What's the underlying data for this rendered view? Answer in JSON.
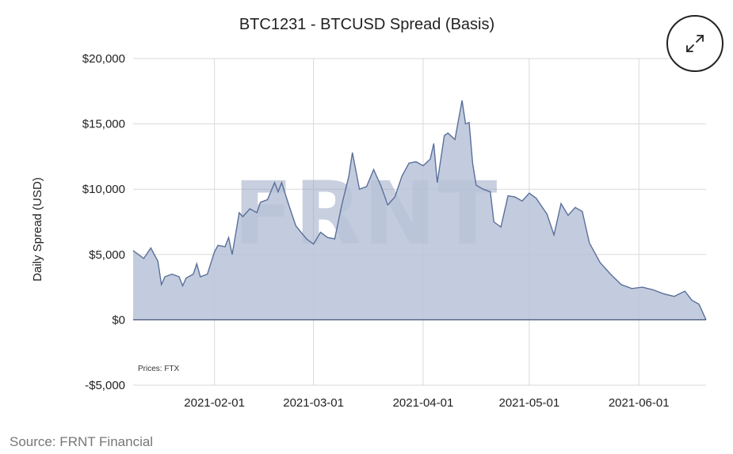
{
  "source": "Source: FRNT Financial",
  "colors": {
    "area_fill": "#b7c3d8",
    "area_line": "#5b6f9b",
    "grid": "#d9d9d9"
  },
  "icons": {
    "expand": "expand-icon"
  },
  "chart_data": {
    "type": "area",
    "title": "BTC1231 - BTCUSD Spread (Basis)",
    "xlabel": "",
    "ylabel": "Daily Spread (USD)",
    "watermark": "FRNT",
    "credit": "Prices: FTX",
    "ylim": [
      -5000,
      20000
    ],
    "xlim": [
      "2021-01-09",
      "2021-06-20"
    ],
    "y_ticks": [
      -5000,
      0,
      5000,
      10000,
      15000,
      20000
    ],
    "y_tick_labels": [
      "-$5,000",
      "$0",
      "$5,000",
      "$10,000",
      "$15,000",
      "$20,000"
    ],
    "x_ticks": [
      "2021-02-01",
      "2021-03-01",
      "2021-04-01",
      "2021-05-01",
      "2021-06-01"
    ],
    "grid": true,
    "legend": "none",
    "series": [
      {
        "x": [
          "2021-01-09",
          "2021-01-12",
          "2021-01-14",
          "2021-01-16",
          "2021-01-17",
          "2021-01-18",
          "2021-01-20",
          "2021-01-22",
          "2021-01-23",
          "2021-01-24",
          "2021-01-26",
          "2021-01-27",
          "2021-01-28",
          "2021-01-30",
          "2021-02-01",
          "2021-02-02",
          "2021-02-04",
          "2021-02-05",
          "2021-02-06",
          "2021-02-08",
          "2021-02-09",
          "2021-02-11",
          "2021-02-13",
          "2021-02-14",
          "2021-02-16",
          "2021-02-18",
          "2021-02-19",
          "2021-02-20",
          "2021-02-22",
          "2021-02-24",
          "2021-02-27",
          "2021-03-01",
          "2021-03-03",
          "2021-03-05",
          "2021-03-07",
          "2021-03-09",
          "2021-03-11",
          "2021-03-12",
          "2021-03-14",
          "2021-03-16",
          "2021-03-18",
          "2021-03-20",
          "2021-03-22",
          "2021-03-24",
          "2021-03-26",
          "2021-03-28",
          "2021-03-30",
          "2021-04-01",
          "2021-04-03",
          "2021-04-04",
          "2021-04-05",
          "2021-04-07",
          "2021-04-08",
          "2021-04-10",
          "2021-04-12",
          "2021-04-13",
          "2021-04-14",
          "2021-04-15",
          "2021-04-16",
          "2021-04-18",
          "2021-04-20",
          "2021-04-21",
          "2021-04-23",
          "2021-04-25",
          "2021-04-27",
          "2021-04-29",
          "2021-05-01",
          "2021-05-03",
          "2021-05-04",
          "2021-05-06",
          "2021-05-08",
          "2021-05-10",
          "2021-05-12",
          "2021-05-14",
          "2021-05-16",
          "2021-05-18",
          "2021-05-21",
          "2021-05-24",
          "2021-05-27",
          "2021-05-30",
          "2021-06-02",
          "2021-06-05",
          "2021-06-08",
          "2021-06-11",
          "2021-06-14",
          "2021-06-16",
          "2021-06-18",
          "2021-06-20"
        ],
        "values": [
          5300,
          4700,
          5500,
          4500,
          2700,
          3300,
          3500,
          3300,
          2600,
          3200,
          3500,
          4300,
          3300,
          3500,
          5200,
          5700,
          5600,
          6300,
          5000,
          8200,
          7900,
          8500,
          8200,
          9000,
          9200,
          10500,
          9800,
          10500,
          8800,
          7200,
          6200,
          5800,
          6700,
          6300,
          6200,
          8800,
          11000,
          12800,
          10000,
          10200,
          11500,
          10300,
          8800,
          9400,
          11000,
          12000,
          12100,
          11800,
          12300,
          13500,
          10500,
          14100,
          14300,
          13800,
          16800,
          15000,
          15100,
          12000,
          10300,
          10000,
          9800,
          7500,
          7100,
          9500,
          9400,
          9100,
          9700,
          9300,
          8900,
          8100,
          6500,
          8900,
          8000,
          8600,
          8300,
          5900,
          4400,
          3500,
          2700,
          2400,
          2500,
          2300,
          2000,
          1800,
          2200,
          1500,
          1200,
          0
        ]
      }
    ]
  }
}
